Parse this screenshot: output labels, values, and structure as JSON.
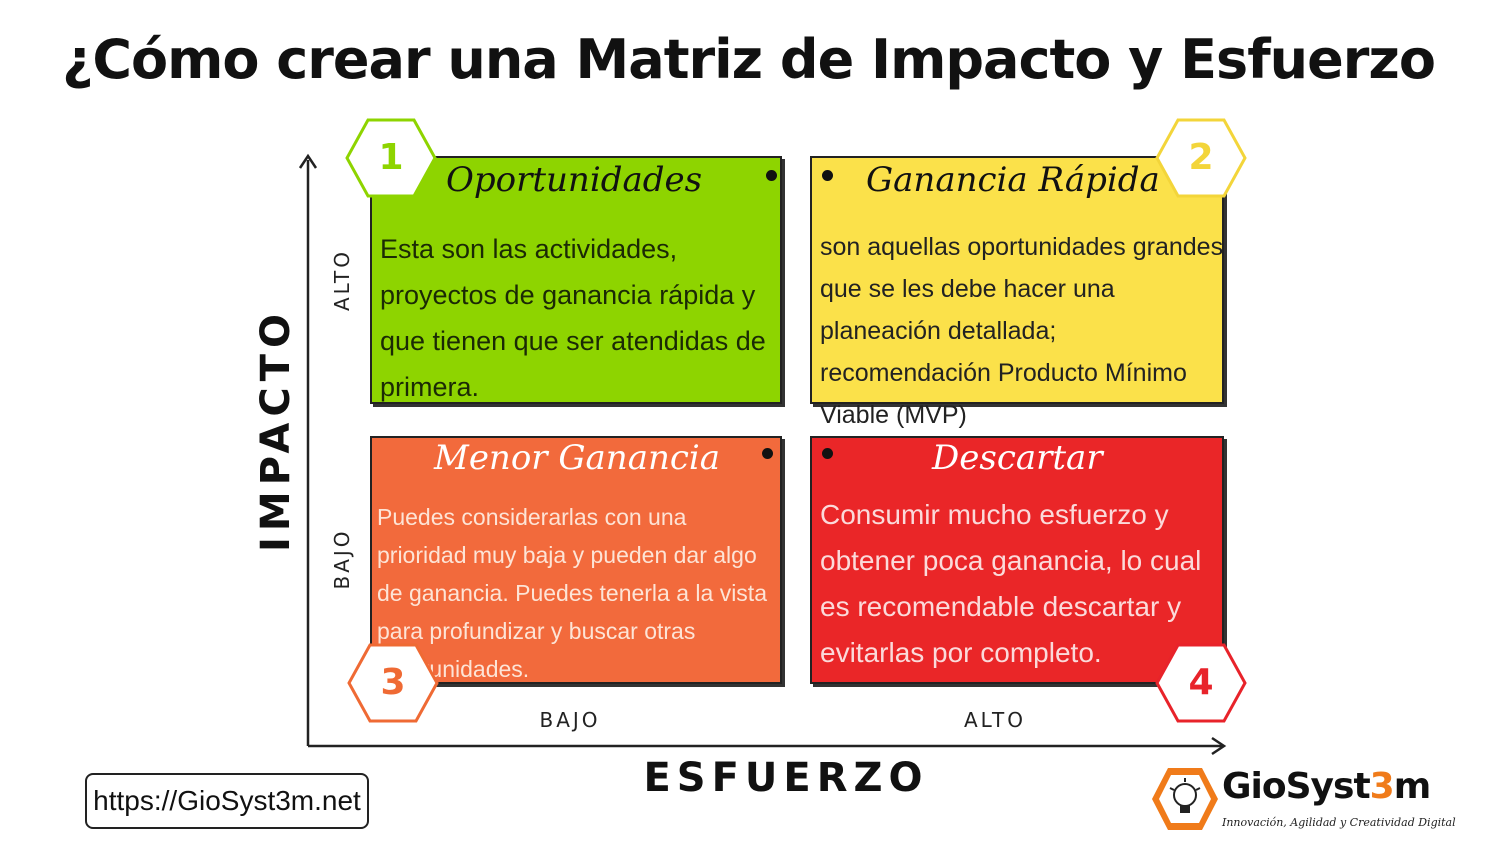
{
  "title": {
    "before": "¿Cómo crear una ",
    "highlight": "Matriz",
    "after": " de Impacto y Esfuerzo",
    "highlight_color": "#8fd22b"
  },
  "axes": {
    "y_title": "IMPACTO",
    "x_title": "ESFUERZO",
    "y_ticks": [
      "ALTO",
      "BAJO"
    ],
    "x_ticks": [
      "BAJO",
      "ALTO"
    ]
  },
  "quadrants": [
    {
      "number": "1",
      "title": "Oportunidades",
      "text": "Esta son las actividades, proyectos de ganancia rápida y que tienen que ser atendidas de primera.",
      "color": "#8ed400",
      "accent": "#8ed400"
    },
    {
      "number": "2",
      "title": "Ganancia Rápida",
      "text": "son aquellas oportunidades grandes que se les debe hacer una planeación detallada; recomendación Producto Mínimo Viable (MVP)",
      "color": "#fbe14a",
      "accent": "#f3d53a"
    },
    {
      "number": "3",
      "title": "Menor Ganancia",
      "text": "Puedes considerarlas con una prioridad muy baja y pueden dar algo de ganancia. Puedes tenerla a la vista para profundizar y buscar otras oportunidades.",
      "color": "#f26a3c",
      "accent": "#ef6a34"
    },
    {
      "number": "4",
      "title": "Descartar",
      "text": "Consumir mucho esfuerzo y obtener poca ganancia, lo cual es recomendable descartar y evitarlas por completo.",
      "color": "#ea2628",
      "accent": "#e8232a"
    }
  ],
  "footer": {
    "url": "https://GioSyst3m.net",
    "brand_a": "GioSyst",
    "brand_b": "3",
    "brand_c": "m",
    "tagline": "Innovación, Agilidad y Creatividad Digital",
    "brand_accent": "#f07b1a"
  }
}
